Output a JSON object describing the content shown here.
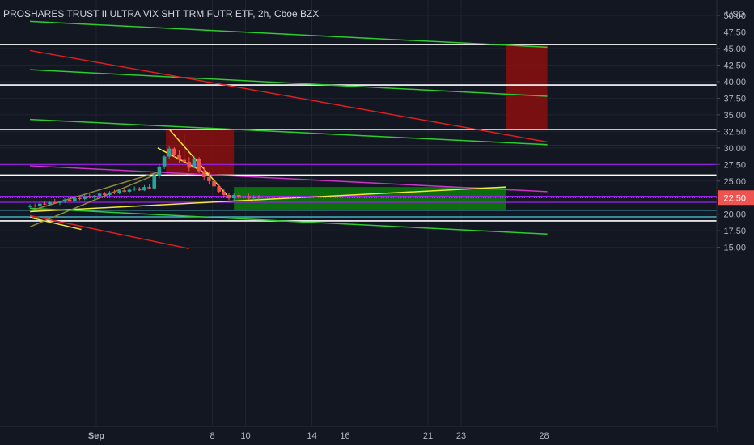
{
  "header": {
    "title": "PROSHARES TRUST II ULTRA VIX SHT TRM FUTR ETF, 2h, Cboe BZX"
  },
  "currency_label": "USD",
  "colors": {
    "background": "#131722",
    "grid": "#1f2330",
    "axis_text": "#b2b5be",
    "up": "#26a69a",
    "down": "#ef5350",
    "resistance_zone": "#8b0e0e",
    "support_zone": "#0a7d0a",
    "horizontal": "#ffffff",
    "green_trend": "#2ecc2e",
    "red_trend": "#e01e1e",
    "yellow_trend": "#f2e83a",
    "magenta": "#cc33cc",
    "magenta_level": "#a020f0",
    "cyan_level": "#4dd0e1",
    "price_badge": "#ef5350"
  },
  "chart_data": {
    "type": "candlestick",
    "symbol": "PROSHARES TRUST II ULTRA VIX SHT TRM FUTR ETF",
    "interval": "2h",
    "exchange": "Cboe BZX",
    "y_ticks": [
      "50.00",
      "47.50",
      "45.00",
      "42.50",
      "40.00",
      "37.50",
      "35.00",
      "32.50",
      "30.00",
      "27.50",
      "25.00",
      "20.00",
      "17.50",
      "15.00"
    ],
    "x_ticks": [
      {
        "label": "Sep",
        "day": 1
      },
      {
        "label": "8",
        "day": 8
      },
      {
        "label": "10",
        "day": 10
      },
      {
        "label": "14",
        "day": 14
      },
      {
        "label": "16",
        "day": 16
      },
      {
        "label": "21",
        "day": 21
      },
      {
        "label": "23",
        "day": 23
      },
      {
        "label": "28",
        "day": 28
      }
    ],
    "last_price": "22.50",
    "candles": [
      [
        21.1,
        21.5,
        20.9,
        21.3
      ],
      [
        21.3,
        21.6,
        21.0,
        21.2
      ],
      [
        21.2,
        21.8,
        21.0,
        21.6
      ],
      [
        21.6,
        22.0,
        21.4,
        21.5
      ],
      [
        21.5,
        21.9,
        21.2,
        21.8
      ],
      [
        21.8,
        22.3,
        21.6,
        21.7
      ],
      [
        21.7,
        22.0,
        21.4,
        21.9
      ],
      [
        21.9,
        22.4,
        21.7,
        22.2
      ],
      [
        22.2,
        22.5,
        21.9,
        22.0
      ],
      [
        22.0,
        22.6,
        21.9,
        22.4
      ],
      [
        22.4,
        22.8,
        22.1,
        22.3
      ],
      [
        22.3,
        22.9,
        22.1,
        22.7
      ],
      [
        22.7,
        23.1,
        22.4,
        22.5
      ],
      [
        22.5,
        22.9,
        22.2,
        22.8
      ],
      [
        22.8,
        23.3,
        22.6,
        23.1
      ],
      [
        23.1,
        23.4,
        22.8,
        22.9
      ],
      [
        22.9,
        23.5,
        22.7,
        23.3
      ],
      [
        23.3,
        23.7,
        23.0,
        23.2
      ],
      [
        23.2,
        23.8,
        23.0,
        23.6
      ],
      [
        23.6,
        23.9,
        23.3,
        23.4
      ],
      [
        23.4,
        23.9,
        23.2,
        23.7
      ],
      [
        23.7,
        24.2,
        23.5,
        23.9
      ],
      [
        23.9,
        24.1,
        23.5,
        23.6
      ],
      [
        23.6,
        24.4,
        23.5,
        24.1
      ],
      [
        24.1,
        24.5,
        23.8,
        23.9
      ],
      [
        23.9,
        26.0,
        23.7,
        25.8
      ],
      [
        25.8,
        27.5,
        25.4,
        27.2
      ],
      [
        27.2,
        29.0,
        26.8,
        28.7
      ],
      [
        28.7,
        30.3,
        28.4,
        29.9
      ],
      [
        29.9,
        30.1,
        28.6,
        28.9
      ],
      [
        28.9,
        29.6,
        27.8,
        28.2
      ],
      [
        28.2,
        32.2,
        27.6,
        27.9
      ],
      [
        27.9,
        28.6,
        26.5,
        27.0
      ],
      [
        27.0,
        28.8,
        26.9,
        28.4
      ],
      [
        28.4,
        28.6,
        26.2,
        26.5
      ],
      [
        26.5,
        27.1,
        25.2,
        25.6
      ],
      [
        25.6,
        26.4,
        24.6,
        25.0
      ],
      [
        25.0,
        25.3,
        23.9,
        24.2
      ],
      [
        24.2,
        24.5,
        23.2,
        23.4
      ],
      [
        23.4,
        23.8,
        22.6,
        22.9
      ],
      [
        22.9,
        23.2,
        22.1,
        22.4
      ],
      [
        22.4,
        23.2,
        22.0,
        22.9
      ],
      [
        22.9,
        23.4,
        22.3,
        22.5
      ],
      [
        22.5,
        23.0,
        22.0,
        22.7
      ],
      [
        22.7,
        23.1,
        22.2,
        22.4
      ],
      [
        22.4,
        22.9,
        22.1,
        22.6
      ],
      [
        22.6,
        22.9,
        22.2,
        22.5
      ]
    ],
    "resistance_zones": [
      {
        "x1_day": 25.7,
        "x2_day": 28.2,
        "y1": 32.8,
        "y2": 45.6
      },
      {
        "x1_day": 5.2,
        "x2_day": 9.3,
        "y1": 25.9,
        "y2": 32.8
      }
    ],
    "support_zones": [
      {
        "x1_day": 9.3,
        "x2_day": 25.7,
        "y1": 20.6,
        "y2": 24.1
      }
    ],
    "horizontal_levels": [
      {
        "y": 45.6,
        "color": "horizontal"
      },
      {
        "y": 39.5,
        "color": "horizontal"
      },
      {
        "y": 32.8,
        "color": "horizontal"
      },
      {
        "y": 25.9,
        "color": "horizontal"
      },
      {
        "y": 19.0,
        "color": "horizontal"
      },
      {
        "y": 30.3,
        "color": "magenta_level"
      },
      {
        "y": 27.5,
        "color": "magenta_level"
      },
      {
        "y": 22.7,
        "color": "magenta_level"
      },
      {
        "y": 21.8,
        "color": "magenta_level"
      },
      {
        "y": 20.6,
        "color": "cyan_level"
      },
      {
        "y": 19.6,
        "color": "cyan_level"
      }
    ],
    "trend_lines": [
      {
        "x1": -3,
        "y1": 49.1,
        "x2": 28.2,
        "y2": 45.2,
        "color": "green_trend"
      },
      {
        "x1": -3,
        "y1": 41.8,
        "x2": 28.2,
        "y2": 37.8,
        "color": "green_trend"
      },
      {
        "x1": -3,
        "y1": 34.3,
        "x2": 28.2,
        "y2": 30.5,
        "color": "green_trend"
      },
      {
        "x1": -3,
        "y1": 20.9,
        "x2": 28.2,
        "y2": 17.0,
        "color": "green_trend"
      },
      {
        "x1": -3,
        "y1": 44.7,
        "x2": 28.2,
        "y2": 30.9,
        "color": "red_trend"
      },
      {
        "x1": -3,
        "y1": 19.8,
        "x2": 6.6,
        "y2": 14.8,
        "color": "red_trend"
      },
      {
        "x1": -3,
        "y1": 27.3,
        "x2": 28.2,
        "y2": 23.4,
        "color": "magenta"
      },
      {
        "x1": -3,
        "y1": 20.4,
        "x2": 25.7,
        "y2": 24.1,
        "color": "yellow_trend"
      },
      {
        "x1": 5.4,
        "y1": 32.8,
        "x2": 8.9,
        "y2": 22.8,
        "color": "yellow_trend"
      },
      {
        "x1": 4.7,
        "y1": 30.0,
        "x2": 7.9,
        "y2": 25.8,
        "color": "yellow_trend"
      },
      {
        "x1": -3,
        "y1": 19.5,
        "x2": 0.1,
        "y2": 17.7,
        "color": "yellow_trend"
      },
      {
        "x1": -3,
        "y1": 18.1,
        "x2": 4.8,
        "y2": 26.2,
        "color": "olive"
      },
      {
        "x1": -3,
        "y1": 20.5,
        "x2": 4.8,
        "y2": 26.4,
        "color": "olive"
      }
    ]
  }
}
